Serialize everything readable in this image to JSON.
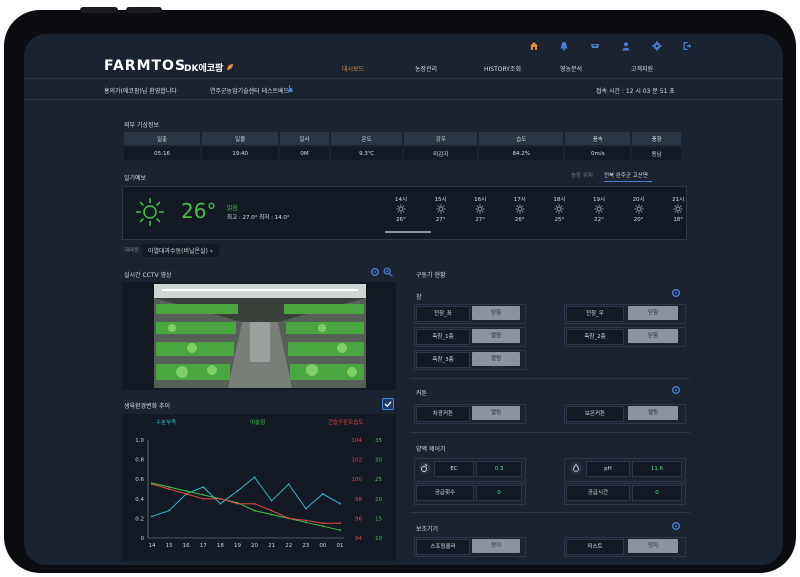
{
  "header": {
    "logo": "FARMTOS",
    "logo_sub": "DK에코팜",
    "icons": [
      "home-icon",
      "bell-icon",
      "inbox-icon",
      "user-icon",
      "settings-icon",
      "logout-icon"
    ],
    "nav": [
      {
        "label": "대시보드",
        "active": true
      },
      {
        "label": "농장관리",
        "active": false
      },
      {
        "label": "HISTORY조회",
        "active": false
      },
      {
        "label": "영농분석",
        "active": false
      },
      {
        "label": "고객지원",
        "active": false
      }
    ]
  },
  "subheader": {
    "welcome": "홍의가(에코팜)님 환영합니다",
    "center": "연주군농업기술센터 테스트베드",
    "access_time": "접속 시간 : 12 시 03 분 51 초"
  },
  "weather": {
    "title": "외부 기상정보",
    "headers": [
      "일출",
      "일몰",
      "일사",
      "온도",
      "강우",
      "습도",
      "풍속",
      "풍향"
    ],
    "values": [
      "05:16",
      "19:40",
      "0M",
      "9.3℃",
      "미감지",
      "84.2%",
      "0m/s",
      "동남"
    ]
  },
  "forecast": {
    "title": "일기예보",
    "tab_location": "농장 위치",
    "tab_region": "전북 완주군 고산면",
    "current_temp": "26°",
    "current_desc": "맑음",
    "current_range": "최고 : 27.0° 최저 : 14.0°",
    "hours": [
      {
        "time": "14시",
        "temp": "26°"
      },
      {
        "time": "15시",
        "temp": "27°"
      },
      {
        "time": "16시",
        "temp": "27°"
      },
      {
        "time": "17시",
        "temp": "26°"
      },
      {
        "time": "18시",
        "temp": "25°"
      },
      {
        "time": "19시",
        "temp": "22°"
      },
      {
        "time": "20시",
        "temp": "20°"
      },
      {
        "time": "21시",
        "temp": "18°"
      }
    ]
  },
  "farm_select": {
    "label": "재배동",
    "value": "아열대과수동(비닐온실)"
  },
  "cctv": {
    "title": "실시간 CCTV 영상"
  },
  "chart": {
    "title": "생육환경변화 추이",
    "legend_left": "수분부족",
    "legend_mid": "이슬점",
    "legend_right": "건습구온도습도"
  },
  "chart_data": {
    "type": "line",
    "x": [
      "14",
      "15",
      "16",
      "17",
      "18",
      "19",
      "20",
      "21",
      "22",
      "23",
      "00",
      "01"
    ],
    "left_ticks": [
      "1.0",
      "0.8",
      "0.6",
      "0.4",
      "0.2",
      "0"
    ],
    "right1_ticks": [
      "104",
      "102",
      "100",
      "98",
      "96",
      "94"
    ],
    "right2_ticks": [
      "35",
      "30",
      "25",
      "20",
      "15",
      "10"
    ],
    "series": [
      {
        "name": "수분부족",
        "color": "#2fb7c6",
        "values": [
          0.22,
          0.28,
          0.45,
          0.52,
          0.35,
          0.48,
          0.62,
          0.38,
          0.55,
          0.3,
          0.45,
          0.35
        ]
      },
      {
        "name": "이슬점",
        "color": "#43c24a",
        "values": [
          24,
          23,
          22,
          21,
          20,
          19,
          17,
          16,
          15,
          14,
          13,
          12
        ]
      },
      {
        "name": "건습구온도습도",
        "color": "#e04848",
        "values": [
          99.5,
          99,
          98.5,
          98,
          98,
          97.5,
          97.5,
          96.8,
          96,
          95.8,
          95.5,
          95.5
        ]
      }
    ]
  },
  "controls": {
    "title": "구동기 현황",
    "window": {
      "title": "창",
      "items": [
        {
          "label": "천창_좌",
          "state": "닫힘"
        },
        {
          "label": "천창_우",
          "state": "닫힘"
        },
        {
          "label": "측창_1층",
          "state": "열림"
        },
        {
          "label": "측창_2층",
          "state": "닫힘"
        },
        {
          "label": "측창_3층",
          "state": "열림"
        }
      ]
    },
    "curtain": {
      "title": "커튼",
      "items": [
        {
          "label": "차광커튼",
          "state": "열림"
        },
        {
          "label": "보온커튼",
          "state": "열림"
        }
      ]
    },
    "nutrient": {
      "title": "양액 제어기",
      "ec_label": "EC",
      "ec_value": "0.3",
      "ph_label": "pH",
      "ph_value": "11.6",
      "supply_count_label": "공급횟수",
      "supply_count_value": "0",
      "supply_time_label": "공급시간",
      "supply_time_value": "0"
    },
    "aux": {
      "title": "보조기기",
      "items": [
        {
          "label": "스프링쿨러",
          "state": "정지"
        },
        {
          "label": "미스트",
          "state": "정지"
        }
      ]
    }
  },
  "colors": {
    "bg": "#1b2330",
    "panel": "#141a23",
    "accent": "#e08e3c",
    "icon": "#4a7fd6"
  }
}
